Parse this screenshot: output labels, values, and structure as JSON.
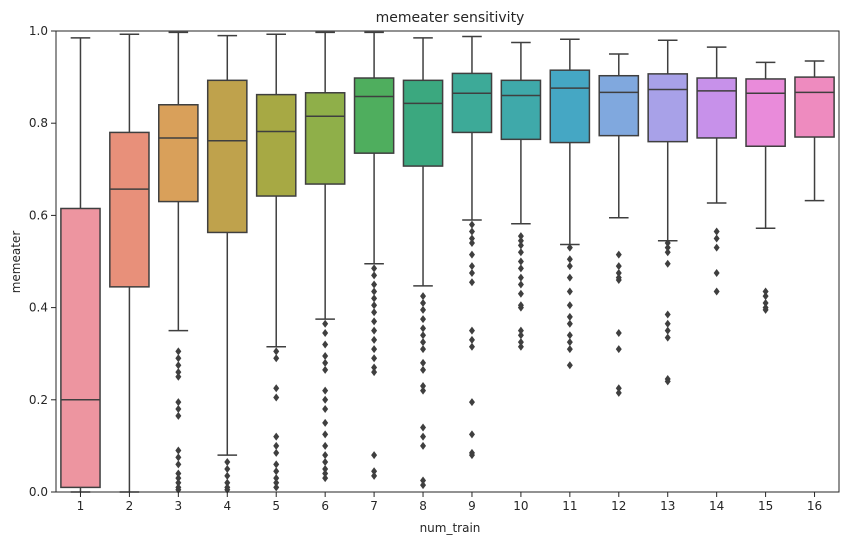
{
  "chart_data": {
    "type": "box",
    "title": "memeater sensitivity",
    "xlabel": "num_train",
    "ylabel": "memeater",
    "ylim": [
      0,
      1.0
    ],
    "yticks": [
      "0.0",
      "0.2",
      "0.4",
      "0.6",
      "0.8",
      "1.0"
    ],
    "ytick_values": [
      0,
      0.2,
      0.4,
      0.6,
      0.8,
      1.0
    ],
    "categories": [
      "1",
      "2",
      "3",
      "4",
      "5",
      "6",
      "7",
      "8",
      "9",
      "10",
      "11",
      "12",
      "13",
      "14",
      "15",
      "16"
    ],
    "colors": [
      "#ED95A0",
      "#E8907A",
      "#D9A05A",
      "#BFA24C",
      "#A7A944",
      "#8FAF49",
      "#4FAE5E",
      "#3BA87F",
      "#3DAA98",
      "#3FA9AA",
      "#45A7C4",
      "#80A8DE",
      "#A8A1E8",
      "#C791EA",
      "#E98BDA",
      "#EE8BBF"
    ],
    "boxes": [
      {
        "min": 0.0,
        "q1": 0.01,
        "median": 0.2,
        "q3": 0.615,
        "max": 0.985,
        "outliers": []
      },
      {
        "min": 0.0,
        "q1": 0.445,
        "median": 0.657,
        "q3": 0.78,
        "max": 0.993,
        "outliers": []
      },
      {
        "min": 0.35,
        "q1": 0.63,
        "median": 0.768,
        "q3": 0.84,
        "max": 0.997,
        "outliers": [
          0.305,
          0.29,
          0.275,
          0.26,
          0.25,
          0.195,
          0.18,
          0.165,
          0.09,
          0.075,
          0.06,
          0.04,
          0.03,
          0.02,
          0.01,
          0.005
        ]
      },
      {
        "min": 0.08,
        "q1": 0.563,
        "median": 0.762,
        "q3": 0.893,
        "max": 0.99,
        "outliers": [
          0.065,
          0.05,
          0.035,
          0.02,
          0.01,
          0.005
        ]
      },
      {
        "min": 0.315,
        "q1": 0.642,
        "median": 0.782,
        "q3": 0.862,
        "max": 0.993,
        "outliers": [
          0.305,
          0.29,
          0.225,
          0.205,
          0.12,
          0.1,
          0.085,
          0.06,
          0.045,
          0.03,
          0.02,
          0.01
        ]
      },
      {
        "min": 0.375,
        "q1": 0.668,
        "median": 0.815,
        "q3": 0.866,
        "max": 0.997,
        "outliers": [
          0.365,
          0.345,
          0.32,
          0.295,
          0.28,
          0.265,
          0.22,
          0.2,
          0.18,
          0.15,
          0.125,
          0.1,
          0.08,
          0.065,
          0.05,
          0.04,
          0.03
        ]
      },
      {
        "min": 0.495,
        "q1": 0.735,
        "median": 0.858,
        "q3": 0.898,
        "max": 0.997,
        "outliers": [
          0.485,
          0.47,
          0.45,
          0.435,
          0.42,
          0.405,
          0.39,
          0.37,
          0.35,
          0.33,
          0.31,
          0.29,
          0.27,
          0.26,
          0.08,
          0.045,
          0.035
        ]
      },
      {
        "min": 0.447,
        "q1": 0.707,
        "median": 0.843,
        "q3": 0.893,
        "max": 0.985,
        "outliers": [
          0.425,
          0.41,
          0.395,
          0.375,
          0.355,
          0.34,
          0.325,
          0.31,
          0.28,
          0.265,
          0.23,
          0.22,
          0.14,
          0.12,
          0.1,
          0.025,
          0.015
        ]
      },
      {
        "min": 0.59,
        "q1": 0.78,
        "median": 0.865,
        "q3": 0.908,
        "max": 0.988,
        "outliers": [
          0.58,
          0.565,
          0.55,
          0.54,
          0.515,
          0.49,
          0.475,
          0.455,
          0.35,
          0.33,
          0.315,
          0.195,
          0.125,
          0.085,
          0.08
        ]
      },
      {
        "min": 0.582,
        "q1": 0.765,
        "median": 0.86,
        "q3": 0.893,
        "max": 0.975,
        "outliers": [
          0.555,
          0.545,
          0.535,
          0.52,
          0.5,
          0.485,
          0.465,
          0.45,
          0.43,
          0.405,
          0.4,
          0.35,
          0.34,
          0.325,
          0.315
        ]
      },
      {
        "min": 0.537,
        "q1": 0.758,
        "median": 0.876,
        "q3": 0.915,
        "max": 0.982,
        "outliers": [
          0.53,
          0.505,
          0.49,
          0.465,
          0.435,
          0.405,
          0.38,
          0.365,
          0.34,
          0.325,
          0.31,
          0.275
        ]
      },
      {
        "min": 0.595,
        "q1": 0.773,
        "median": 0.867,
        "q3": 0.903,
        "max": 0.95,
        "outliers": [
          0.515,
          0.49,
          0.475,
          0.465,
          0.46,
          0.345,
          0.31,
          0.225,
          0.215
        ]
      },
      {
        "min": 0.545,
        "q1": 0.76,
        "median": 0.873,
        "q3": 0.907,
        "max": 0.98,
        "outliers": [
          0.54,
          0.53,
          0.52,
          0.495,
          0.385,
          0.365,
          0.35,
          0.335,
          0.245,
          0.24
        ]
      },
      {
        "min": 0.627,
        "q1": 0.768,
        "median": 0.87,
        "q3": 0.898,
        "max": 0.965,
        "outliers": [
          0.565,
          0.55,
          0.53,
          0.475,
          0.435
        ]
      },
      {
        "min": 0.572,
        "q1": 0.75,
        "median": 0.865,
        "q3": 0.896,
        "max": 0.932,
        "outliers": [
          0.435,
          0.425,
          0.41,
          0.4,
          0.395
        ]
      },
      {
        "min": 0.632,
        "q1": 0.77,
        "median": 0.867,
        "q3": 0.9,
        "max": 0.935,
        "outliers": []
      }
    ]
  }
}
